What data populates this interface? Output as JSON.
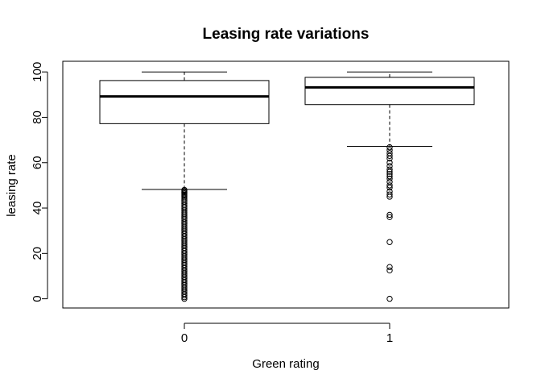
{
  "chart_data": {
    "type": "boxplot",
    "title": "Leasing rate variations",
    "xlabel": "Green rating",
    "ylabel": "leasing rate",
    "categories": [
      "0",
      "1"
    ],
    "ylim": [
      -4,
      104
    ],
    "yticks": [
      0,
      20,
      40,
      60,
      80,
      100
    ],
    "grid": false,
    "legend": "none",
    "boxes": [
      {
        "category": "0",
        "lower_whisker": 48.2,
        "q1": 77.2,
        "median": 89.2,
        "q3": 96.2,
        "upper_whisker": 100,
        "outliers": [
          48,
          47.5,
          47,
          46.5,
          46,
          45.5,
          45,
          44.3,
          43.5,
          42.8,
          42,
          41.2,
          40.5,
          39.8,
          39,
          38.2,
          37.5,
          36.8,
          36,
          35.3,
          34.5,
          33.7,
          33,
          32.2,
          31.5,
          30.7,
          30,
          29.2,
          28.5,
          27.7,
          27,
          26.2,
          25.5,
          24.7,
          24,
          23.2,
          22.5,
          21.7,
          21,
          20.2,
          19.5,
          18.7,
          18,
          17.2,
          16.5,
          15.7,
          15,
          14.2,
          13.5,
          12.7,
          12,
          11.2,
          10.5,
          9.7,
          9,
          8.2,
          7.5,
          6.7,
          6,
          5.2,
          4.5,
          3.7,
          3,
          2.2,
          1.5,
          0.7,
          0
        ]
      },
      {
        "category": "1",
        "lower_whisker": 67.2,
        "q1": 85.6,
        "median": 93.2,
        "q3": 97.6,
        "upper_whisker": 100,
        "outliers": [
          66.8,
          65.5,
          64.2,
          63,
          61.8,
          60,
          58.5,
          57,
          56,
          55,
          54,
          53,
          51.5,
          50,
          49,
          47.3,
          46,
          45,
          37,
          36,
          25,
          14,
          12.5,
          0
        ]
      }
    ]
  }
}
